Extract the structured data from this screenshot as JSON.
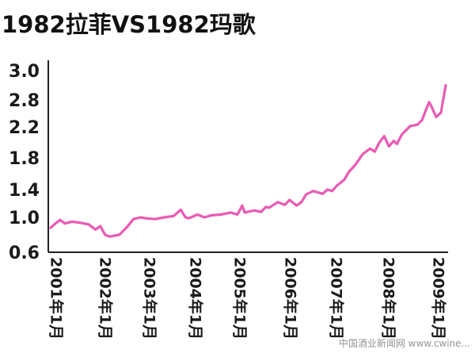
{
  "chart_data": {
    "type": "line",
    "title": "1982拉菲VS1982玛歌",
    "xlabel": "",
    "ylabel": "",
    "y_tick_labels": [
      "3.0",
      "2.8",
      "2.2",
      "1.8",
      "1.4",
      "1.0",
      "0.6"
    ],
    "x_tick_labels": [
      "2001年1月",
      "2002年1月",
      "2003年1月",
      "2004年1月",
      "2005年1月",
      "2006年1月",
      "2007年1月",
      "2008年1月",
      "2009年1月"
    ],
    "line_color": "#e95ab4",
    "grid": false,
    "legend": "none",
    "series": [
      {
        "x": [
          2001.0,
          2001.1,
          2001.2,
          2001.3,
          2001.45,
          2001.6,
          2001.8,
          2001.95,
          2002.05,
          2002.15,
          2002.25,
          2002.45,
          2002.6,
          2002.75,
          2002.9,
          2003.0,
          2003.2,
          2003.4,
          2003.6,
          2003.75,
          2003.85,
          2003.92,
          2004.1,
          2004.25,
          2004.4,
          2004.6,
          2004.8,
          2004.95,
          2005.05,
          2005.1,
          2005.3,
          2005.45,
          2005.55,
          2005.62,
          2005.8,
          2005.95,
          2006.05,
          2006.2,
          2006.3,
          2006.4,
          2006.55,
          2006.75,
          2006.85,
          2006.95,
          2007.05,
          2007.2,
          2007.3,
          2007.45,
          2007.6,
          2007.75,
          2007.85,
          2007.95,
          2008.05,
          2008.15,
          2008.25,
          2008.32,
          2008.42,
          2008.5,
          2008.6,
          2008.75,
          2008.85,
          2008.92,
          2009.0,
          2009.05,
          2009.15,
          2009.25,
          2009.35
        ],
        "y": [
          0.88,
          0.93,
          0.97,
          0.93,
          0.95,
          0.94,
          0.92,
          0.86,
          0.9,
          0.8,
          0.78,
          0.8,
          0.88,
          0.98,
          1.0,
          0.99,
          0.98,
          1.0,
          1.02,
          1.11,
          1.0,
          0.99,
          1.04,
          1.0,
          1.03,
          1.04,
          1.07,
          1.04,
          1.17,
          1.07,
          1.1,
          1.08,
          1.15,
          1.14,
          1.22,
          1.18,
          1.25,
          1.17,
          1.22,
          1.33,
          1.38,
          1.34,
          1.4,
          1.38,
          1.45,
          1.52,
          1.62,
          1.72,
          1.85,
          1.92,
          1.88,
          2.0,
          2.08,
          1.95,
          2.02,
          1.98,
          2.1,
          2.15,
          2.22,
          2.25,
          2.35,
          2.55,
          2.75,
          2.65,
          2.42,
          2.52,
          2.9
        ]
      }
    ],
    "watermark": "中国酒业新闻网 www.cwine..."
  }
}
